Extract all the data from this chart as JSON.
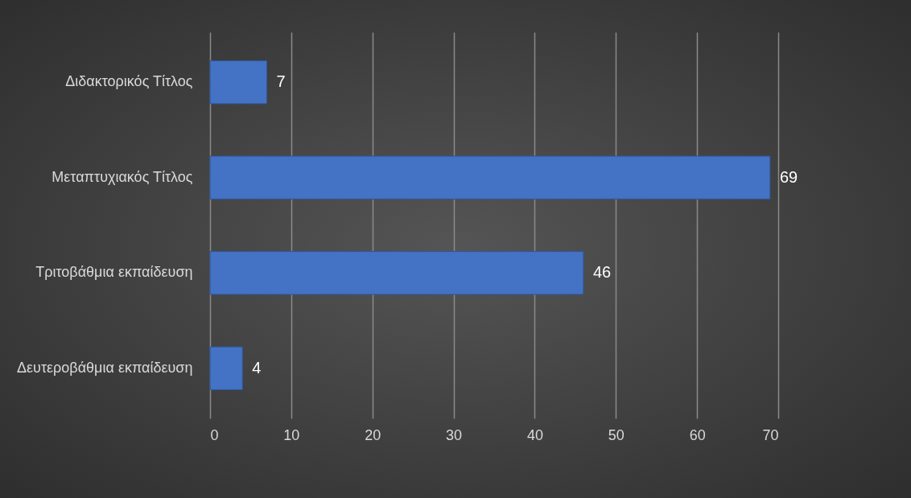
{
  "chart_data": {
    "type": "bar",
    "orientation": "horizontal",
    "categories": [
      "Διδακτορικός Τίτλος",
      "Μεταπτυχιακός Τίτλος",
      "Τριτοβάθμια εκπαίδευση",
      "Δευτεροβάθμια εκπαίδευση"
    ],
    "values": [
      7,
      69,
      46,
      4
    ],
    "color": "#4472c4",
    "xlim": [
      0,
      70
    ],
    "xticks": [
      0,
      10,
      20,
      30,
      40,
      50,
      60,
      70
    ],
    "grid": "x",
    "data_labels": true
  }
}
